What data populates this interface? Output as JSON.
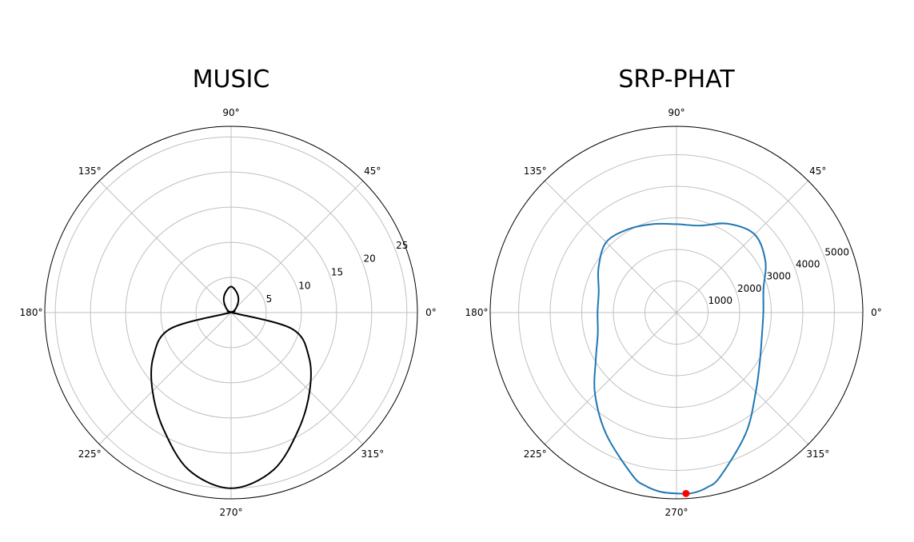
{
  "chart_data": [
    {
      "type": "polar",
      "title": "MUSIC",
      "theta_tick_labels": [
        "0°",
        "45°",
        "90°",
        "135°",
        "180°",
        "225°",
        "270°",
        "315°"
      ],
      "theta_ticks_deg": [
        0,
        45,
        90,
        135,
        180,
        225,
        270,
        315
      ],
      "r_ticks": [
        5,
        10,
        15,
        20,
        25
      ],
      "r_tick_labels": [
        "5",
        "10",
        "15",
        "20",
        "25"
      ],
      "rlim": [
        0,
        26.5
      ],
      "grid": true,
      "series": [
        {
          "color": "#000000",
          "theta_deg": [
            0,
            15,
            30,
            45,
            60,
            75,
            90,
            105,
            120,
            135,
            150,
            165,
            180,
            195,
            210,
            225,
            240,
            255,
            270,
            285,
            300,
            315,
            330,
            345
          ],
          "r": [
            0.1,
            0.2,
            0.5,
            1.1,
            2.1,
            3.0,
            3.7,
            3.0,
            2.1,
            1.1,
            0.5,
            0.2,
            0.1,
            9.0,
            12.8,
            15.8,
            19.2,
            23.2,
            25.0,
            23.2,
            19.2,
            15.8,
            12.8,
            9.0
          ]
        }
      ]
    },
    {
      "type": "polar",
      "title": "SRP-PHAT",
      "theta_tick_labels": [
        "0°",
        "45°",
        "90°",
        "135°",
        "180°",
        "225°",
        "270°",
        "315°"
      ],
      "theta_ticks_deg": [
        0,
        45,
        90,
        135,
        180,
        225,
        270,
        315
      ],
      "r_ticks": [
        1000,
        2000,
        3000,
        4000,
        5000
      ],
      "r_tick_labels": [
        "1000",
        "2000",
        "3000",
        "4000",
        "5000"
      ],
      "rlim": [
        0,
        5900
      ],
      "grid": true,
      "series": [
        {
          "color": "#1f77b4",
          "theta_deg": [
            0,
            15,
            30,
            45,
            60,
            75,
            90,
            105,
            120,
            135,
            150,
            165,
            180,
            195,
            210,
            225,
            240,
            255,
            260,
            265,
            270,
            275,
            280,
            285,
            300,
            315,
            330,
            345
          ],
          "r": [
            2750,
            2850,
            3250,
            3500,
            3250,
            2850,
            2800,
            2900,
            3050,
            3150,
            2850,
            2550,
            2500,
            2580,
            2950,
            3650,
            4450,
            5350,
            5580,
            5700,
            5730,
            5740,
            5620,
            5370,
            4400,
            3550,
            3050,
            2800
          ]
        }
      ],
      "marker": {
        "theta_deg": 273,
        "r": 5740,
        "color": "#ff0000"
      }
    }
  ]
}
